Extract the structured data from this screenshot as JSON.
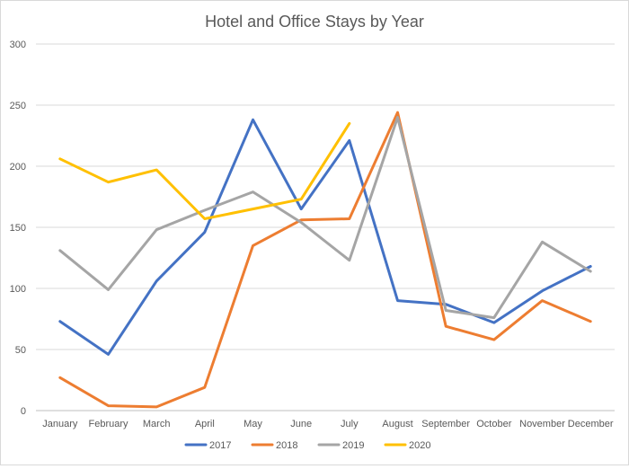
{
  "chart_data": {
    "type": "line",
    "title": "Hotel and Office Stays by Year",
    "xlabel": "",
    "ylabel": "",
    "ylim": [
      0,
      300
    ],
    "yticks": [
      0,
      50,
      100,
      150,
      200,
      250,
      300
    ],
    "grid": true,
    "legend_position": "bottom",
    "categories": [
      "January",
      "February",
      "March",
      "April",
      "May",
      "June",
      "July",
      "August",
      "September",
      "October",
      "November",
      "December"
    ],
    "series": [
      {
        "name": "2017",
        "color": "#4472c4",
        "values": [
          73,
          46,
          106,
          146,
          238,
          165,
          221,
          90,
          87,
          72,
          98,
          118
        ]
      },
      {
        "name": "2018",
        "color": "#ed7d31",
        "values": [
          27,
          4,
          3,
          19,
          135,
          156,
          157,
          244,
          69,
          58,
          90,
          73
        ]
      },
      {
        "name": "2019",
        "color": "#a5a5a5",
        "values": [
          131,
          99,
          148,
          164,
          179,
          154,
          123,
          240,
          82,
          76,
          138,
          114
        ]
      },
      {
        "name": "2020",
        "color": "#ffc000",
        "values": [
          206,
          187,
          197,
          157,
          165,
          173,
          235,
          null,
          null,
          null,
          null,
          null
        ]
      }
    ]
  }
}
